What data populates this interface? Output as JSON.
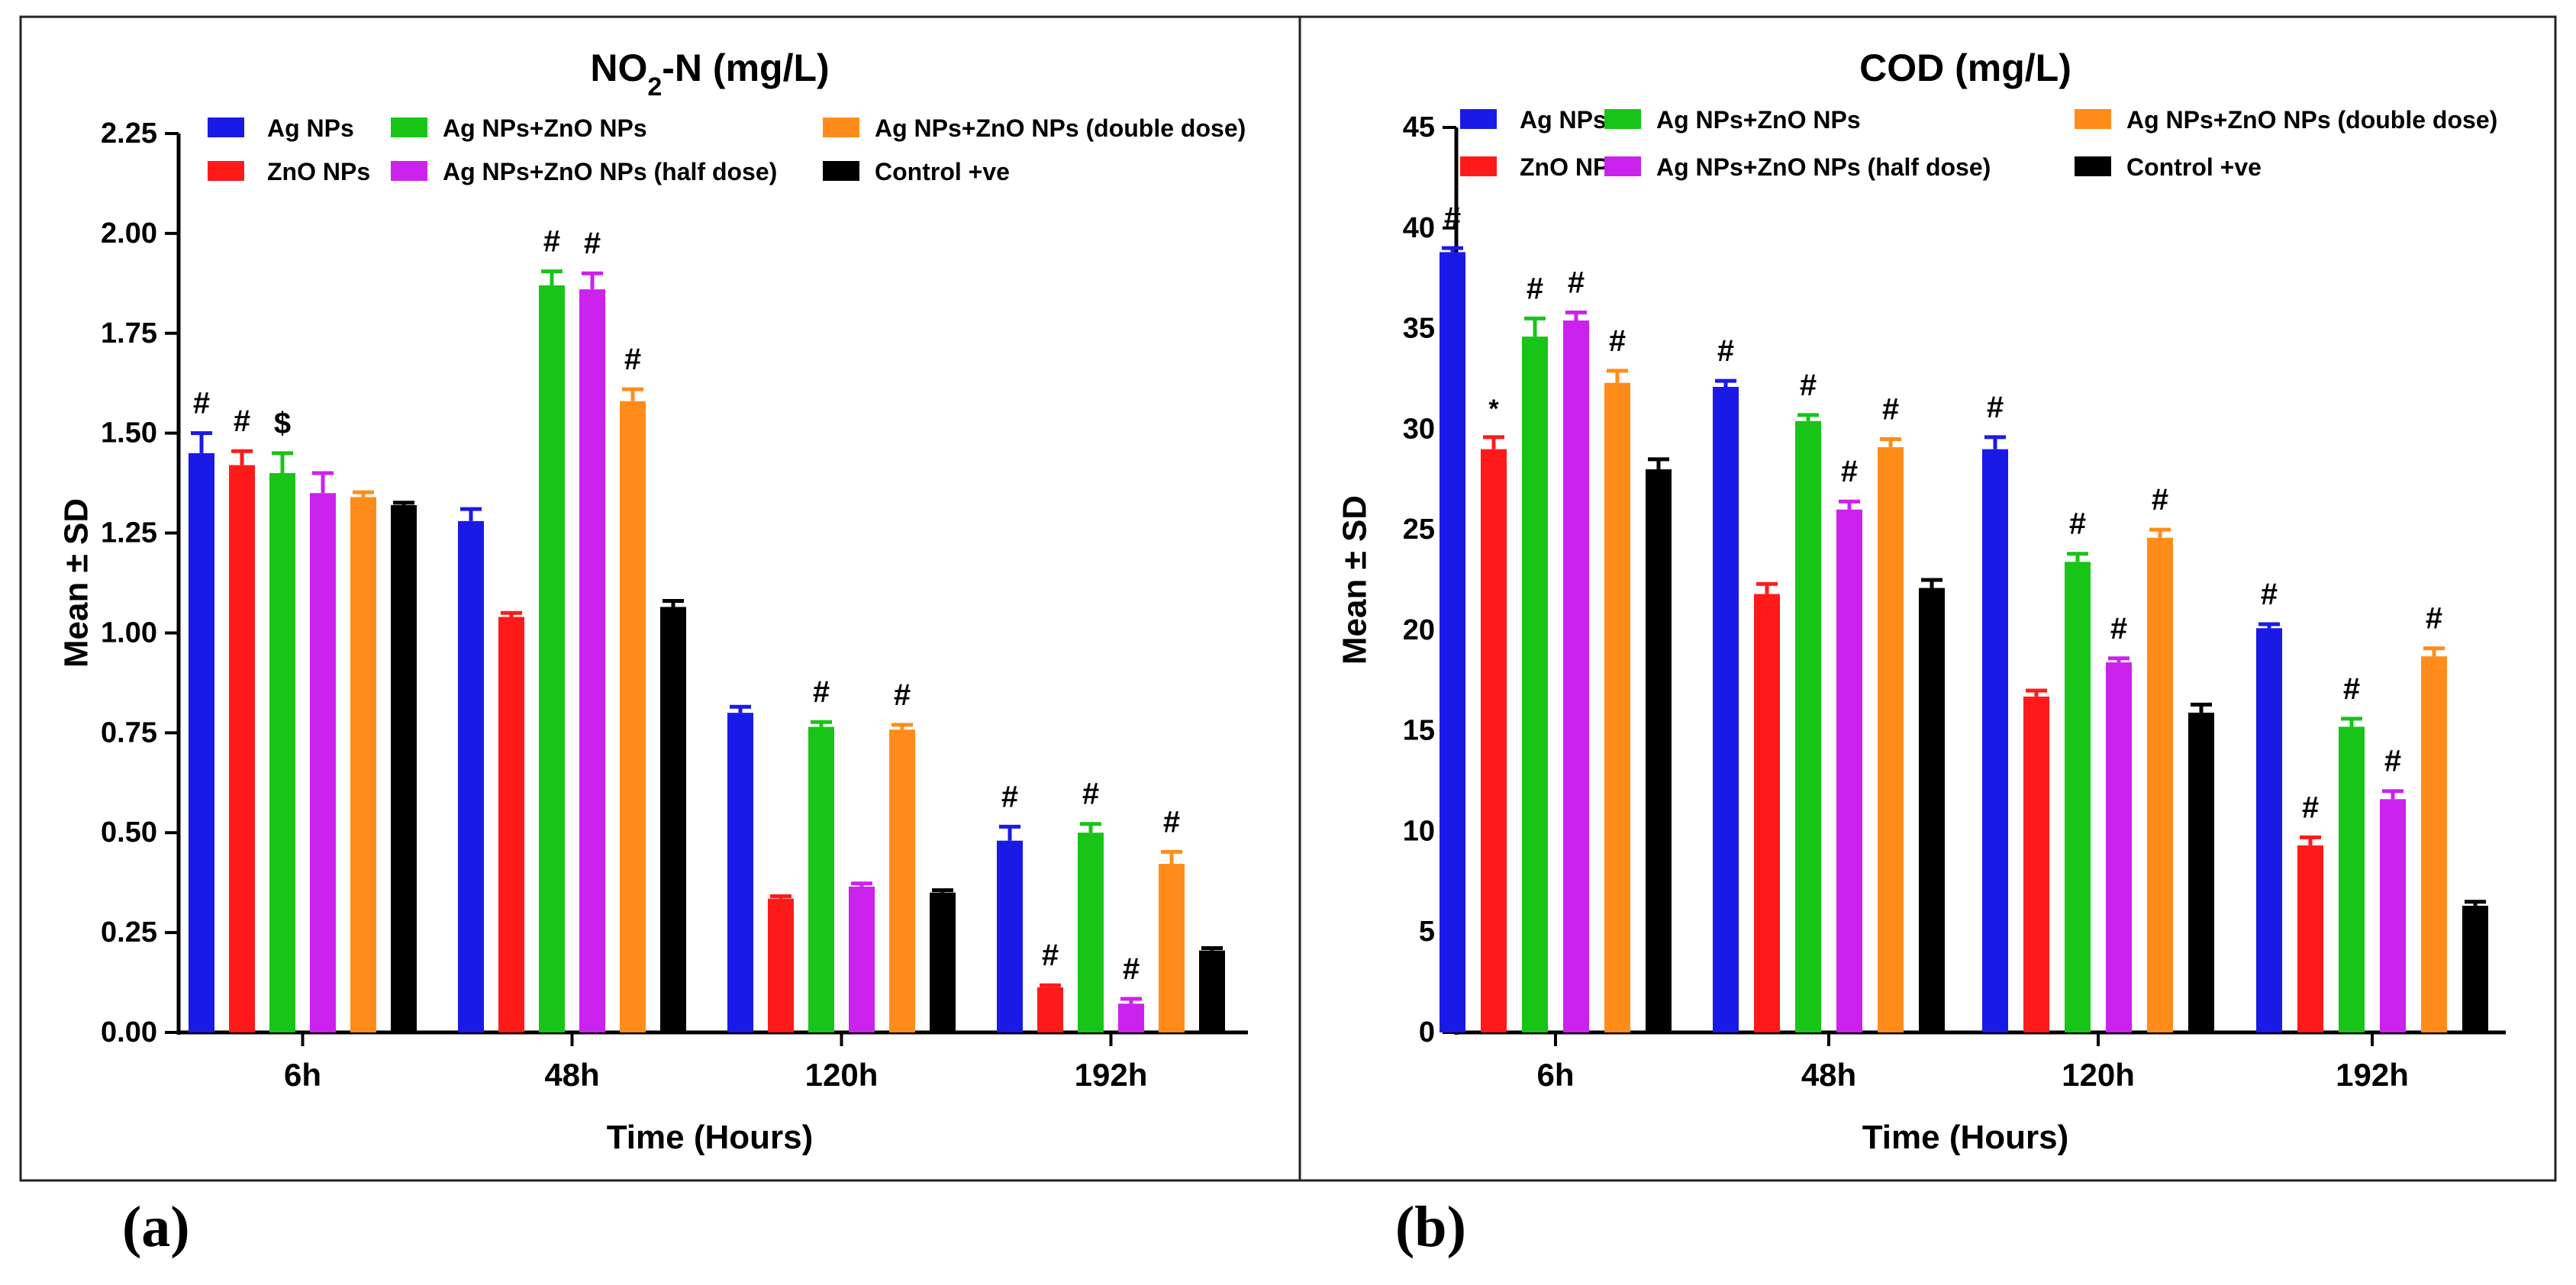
{
  "panel_labels": [
    "(a)",
    "(b)"
  ],
  "colors": {
    "Ag NPs": "#1a1ae6",
    "ZnO NPs": "#ff1a1a",
    "Ag NPs+ZnO NPs": "#18c418",
    "Ag NPs+ZnO NPs (half dose)": "#cc22ee",
    "Ag NPs+ZnO NPs (double dose)": "#ff8c1a",
    "Control +ve": "#000000"
  },
  "chart_data": [
    {
      "type": "bar",
      "title_main": "NO",
      "title_sub": "2",
      "title_rest": "-N (mg/L)",
      "xlabel": "Time (Hours)",
      "ylabel": "Mean ± SD",
      "ylim": [
        0,
        2.25
      ],
      "yticks": [
        "0.00",
        "0.25",
        "0.50",
        "0.75",
        "1.00",
        "1.25",
        "1.50",
        "1.75",
        "2.00",
        "2.25"
      ],
      "categories": [
        "6h",
        "48h",
        "120h",
        "192h"
      ],
      "series": [
        {
          "name": "Ag NPs",
          "values": [
            1.45,
            1.28,
            0.8,
            0.48
          ],
          "sd": [
            0.05,
            0.03,
            0.015,
            0.035
          ]
        },
        {
          "name": "ZnO NPs",
          "values": [
            1.42,
            1.04,
            0.335,
            0.113
          ],
          "sd": [
            0.035,
            0.01,
            0.006,
            0.005
          ]
        },
        {
          "name": "Ag NPs+ZnO NPs",
          "values": [
            1.4,
            1.87,
            0.765,
            0.5
          ],
          "sd": [
            0.05,
            0.035,
            0.012,
            0.022
          ]
        },
        {
          "name": "Ag NPs+ZnO NPs (half dose)",
          "values": [
            1.35,
            1.86,
            0.365,
            0.072
          ],
          "sd": [
            0.05,
            0.04,
            0.008,
            0.012
          ]
        },
        {
          "name": "Ag NPs+ZnO NPs (double dose)",
          "values": [
            1.34,
            1.58,
            0.758,
            0.422
          ],
          "sd": [
            0.012,
            0.03,
            0.012,
            0.03
          ]
        },
        {
          "name": "Control +ve",
          "values": [
            1.32,
            1.065,
            0.35,
            0.205
          ],
          "sd": [
            0.006,
            0.015,
            0.006,
            0.006
          ]
        }
      ],
      "annotations": [
        [
          "#",
          "",
          "",
          "#"
        ],
        [
          "#",
          "",
          "",
          "#"
        ],
        [
          "$",
          "#",
          "#",
          "#"
        ],
        [
          "",
          "#",
          "",
          "#"
        ],
        [
          "",
          "#",
          "#",
          "#"
        ],
        [
          "",
          "",
          "",
          ""
        ]
      ],
      "legend_position": "top",
      "legend_layout": [
        [
          "Ag NPs",
          "ZnO NPs"
        ],
        [
          "Ag NPs+ZnO NPs",
          "Ag NPs+ZnO NPs (half dose)"
        ],
        [
          "Ag NPs+ZnO NPs (double dose)",
          "Control +ve"
        ]
      ]
    },
    {
      "type": "bar",
      "title_main": "COD (mg/L)",
      "title_sub": "",
      "title_rest": "",
      "xlabel": "Time (Hours)",
      "ylabel": "Mean ± SD",
      "ylim": [
        0,
        45
      ],
      "yticks": [
        "0",
        "5",
        "10",
        "15",
        "20",
        "25",
        "30",
        "35",
        "40",
        "45"
      ],
      "categories": [
        "6h",
        "48h",
        "120h",
        "192h"
      ],
      "series": [
        {
          "name": "Ag NPs",
          "values": [
            38.8,
            32.1,
            29.0,
            20.1
          ],
          "sd": [
            0.2,
            0.3,
            0.6,
            0.2
          ]
        },
        {
          "name": "ZnO NPs",
          "values": [
            29.0,
            21.8,
            16.7,
            9.3
          ],
          "sd": [
            0.6,
            0.5,
            0.3,
            0.4
          ]
        },
        {
          "name": "Ag NPs+ZnO NPs",
          "values": [
            34.6,
            30.4,
            23.4,
            15.2
          ],
          "sd": [
            0.9,
            0.3,
            0.4,
            0.4
          ]
        },
        {
          "name": "Ag NPs+ZnO NPs (half dose)",
          "values": [
            35.4,
            26.0,
            18.4,
            11.6
          ],
          "sd": [
            0.4,
            0.4,
            0.2,
            0.4
          ]
        },
        {
          "name": "Ag NPs+ZnO NPs (double dose)",
          "values": [
            32.3,
            29.1,
            24.6,
            18.7
          ],
          "sd": [
            0.6,
            0.4,
            0.4,
            0.4
          ]
        },
        {
          "name": "Control +ve",
          "values": [
            28.0,
            22.1,
            15.9,
            6.3
          ],
          "sd": [
            0.5,
            0.4,
            0.4,
            0.2
          ]
        }
      ],
      "annotations": [
        [
          "#",
          "#",
          "#",
          "#"
        ],
        [
          "*",
          "",
          "",
          "#"
        ],
        [
          "#",
          "#",
          "#",
          "#"
        ],
        [
          "#",
          "#",
          "#",
          "#"
        ],
        [
          "#",
          "#",
          "#",
          "#"
        ],
        [
          "",
          "",
          "",
          ""
        ]
      ],
      "legend_position": "top",
      "legend_layout": [
        [
          "Ag NPs",
          "ZnO NPs"
        ],
        [
          "Ag NPs+ZnO NPs",
          "Ag NPs+ZnO NPs (half dose)"
        ],
        [
          "Ag NPs+ZnO NPs (double dose)",
          "Control +ve"
        ]
      ]
    }
  ]
}
